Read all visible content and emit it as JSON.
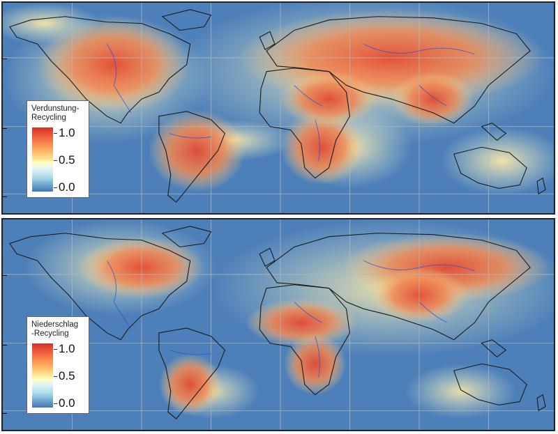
{
  "panels": [
    {
      "id": "top",
      "legend_title": "Verdunstung-\nRecycling",
      "scale": {
        "max": "1.0",
        "mid": "0.5",
        "min": "0.0"
      },
      "colors": {
        "high": "#d73027",
        "mid": "#ffffbf",
        "low": "#4575b4",
        "ocean": "#4d7fb8",
        "coast": "#1a1a1a",
        "river": "#2b4fd8"
      }
    },
    {
      "id": "bottom",
      "legend_title": "Niederschlag\n-Recycling",
      "scale": {
        "max": "1.0",
        "mid": "0.5",
        "min": "0.0"
      },
      "colors": {
        "high": "#d73027",
        "mid": "#ffffbf",
        "low": "#4575b4",
        "ocean": "#4d7fb8",
        "coast": "#1a1a1a",
        "river": "#2b4fd8"
      }
    }
  ]
}
